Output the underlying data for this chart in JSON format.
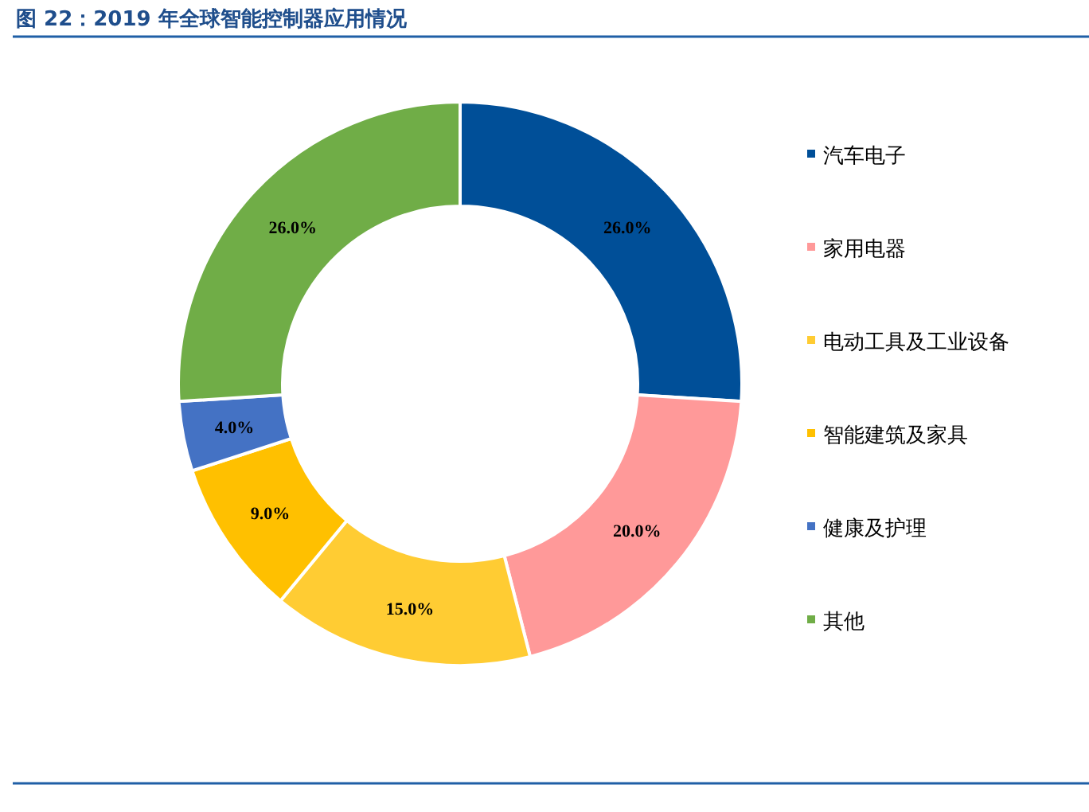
{
  "chart_data": {
    "type": "donut",
    "title": "图 22：2019 年全球智能控制器应用情况",
    "categories": [
      "汽车电子",
      "家用电器",
      "电动工具及工业设备",
      "智能建筑及家具",
      "健康及护理",
      "其他"
    ],
    "values": [
      26.0,
      20.0,
      15.0,
      9.0,
      4.0,
      26.0
    ],
    "colors": [
      "#004f98",
      "#ff9999",
      "#ffcc33",
      "#ffc000",
      "#4472c4",
      "#70ad47"
    ],
    "value_labels": [
      "26.0%",
      "20.0%",
      "15.0%",
      "9.0%",
      "4.0%",
      "26.0%"
    ],
    "legend": "right"
  }
}
